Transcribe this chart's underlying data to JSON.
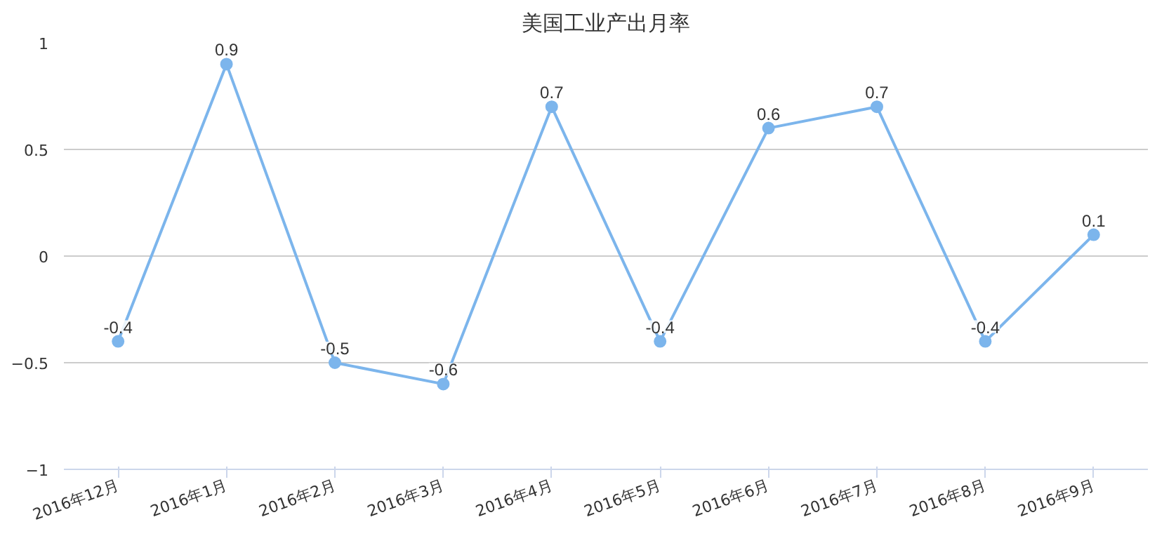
{
  "chart_data": {
    "type": "line",
    "title": "美国工业产出月率",
    "categories": [
      "2016年12月",
      "2016年1月",
      "2016年2月",
      "2016年3月",
      "2016年4月",
      "2016年5月",
      "2016年6月",
      "2016年7月",
      "2016年8月",
      "2016年9月"
    ],
    "series": [
      {
        "color": "#7cb5ec",
        "values": [
          -0.4,
          0.9,
          -0.5,
          -0.6,
          0.7,
          -0.4,
          0.6,
          0.7,
          -0.4,
          0.1
        ]
      }
    ],
    "ylim": [
      -1,
      1
    ],
    "yticks": [
      -1,
      -0.5,
      0,
      0.5,
      1
    ],
    "grid": "y",
    "marker": "circle",
    "line_style": "solid",
    "data_labels": true
  }
}
